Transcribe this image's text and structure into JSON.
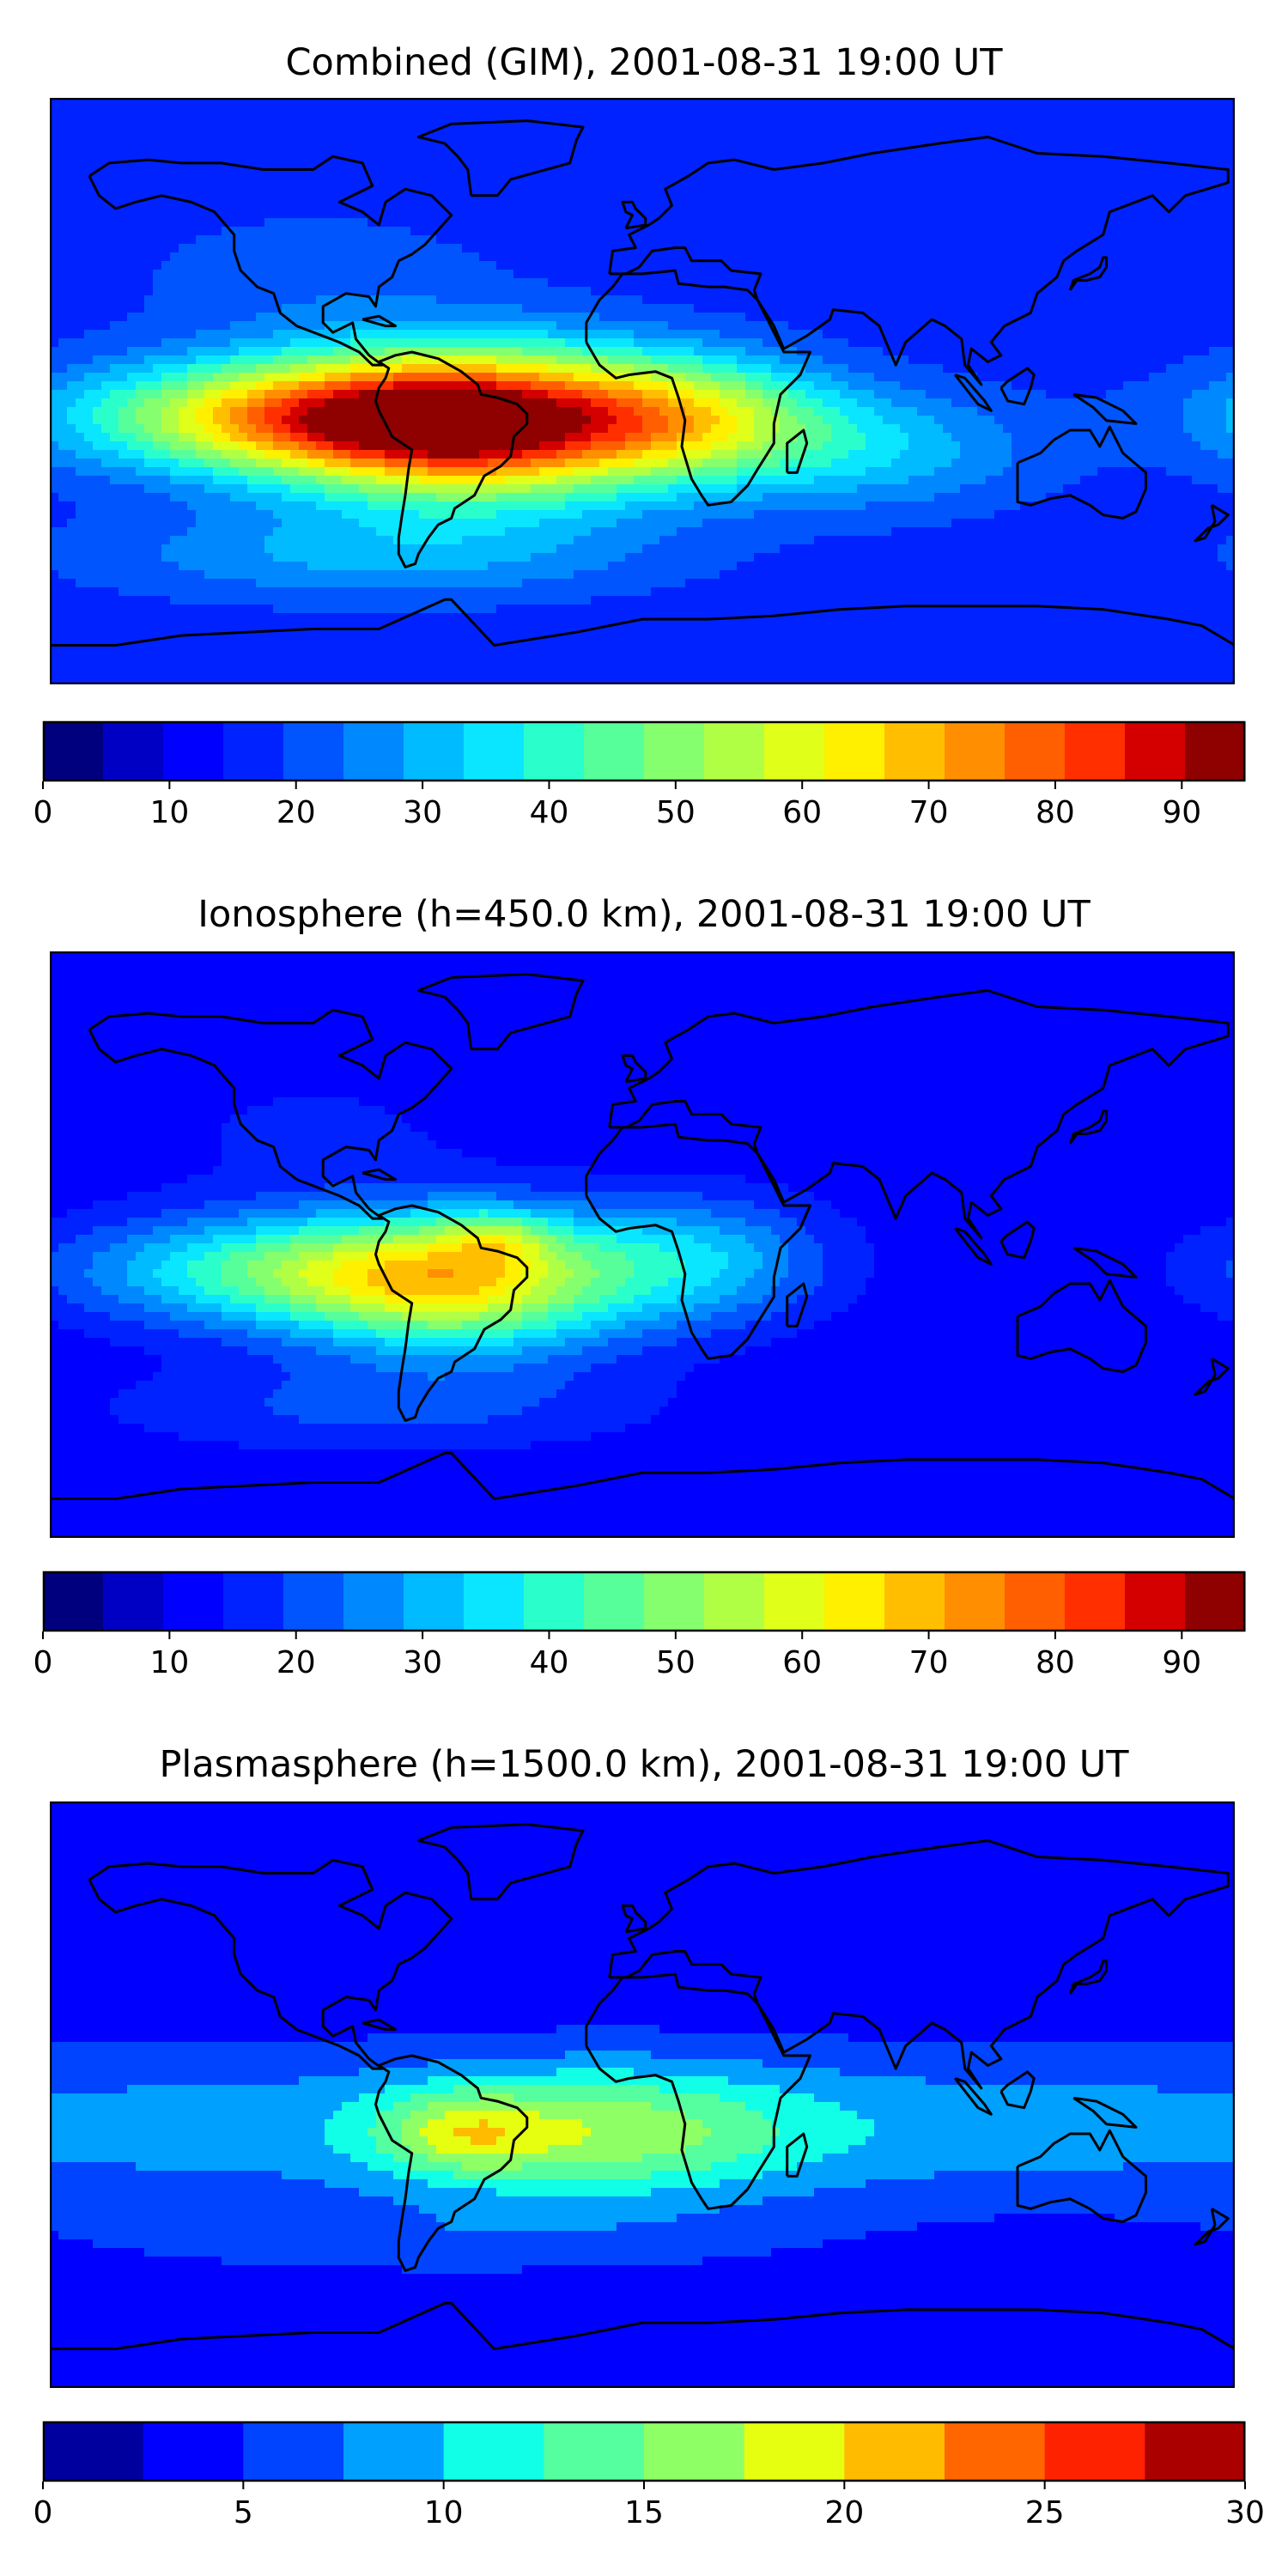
{
  "figure": {
    "panels": [
      {
        "id": "combined",
        "title": "Combined (GIM), 2001-08-31 19:00 UT",
        "colorbar": {
          "min": 0,
          "max": 95,
          "step": 5,
          "ticks": [
            0,
            10,
            20,
            30,
            40,
            50,
            60,
            70,
            80,
            90
          ],
          "tick_labels": [
            "0",
            "10",
            "20",
            "30",
            "40",
            "50",
            "60",
            "70",
            "80",
            "90"
          ],
          "colors": [
            "#00007f",
            "#0000c4",
            "#0000ff",
            "#0022ff",
            "#0055ff",
            "#0088ff",
            "#00bbff",
            "#0ae6ff",
            "#2affcc",
            "#57ff9b",
            "#86ff6e",
            "#b1ff45",
            "#e0ff19",
            "#fff000",
            "#ffbf00",
            "#ff8f00",
            "#ff5f00",
            "#ff2f00",
            "#d40000",
            "#8f0000"
          ]
        },
        "field": {
          "type": "filled_contour",
          "base_level": 17,
          "features": [
            {
              "label": "south-america-peak",
              "lon": -50,
              "lat": -10,
              "amp": 75,
              "sigma_lon": 40,
              "sigma_lat": 16
            },
            {
              "label": "pacific-tongue",
              "lon": -110,
              "lat": -8,
              "amp": 48,
              "sigma_lon": 45,
              "sigma_lat": 12
            },
            {
              "label": "atlantic-africa",
              "lon": 15,
              "lat": -8,
              "amp": 34,
              "sigma_lon": 30,
              "sigma_lat": 13
            },
            {
              "label": "indian-band",
              "lon": 70,
              "lat": -18,
              "amp": 16,
              "sigma_lon": 35,
              "sigma_lat": 13
            },
            {
              "label": "southern-band",
              "lon": -80,
              "lat": -50,
              "amp": 14,
              "sigma_lon": 60,
              "sigma_lat": 10
            },
            {
              "label": "north-america",
              "lon": -100,
              "lat": 35,
              "amp": 6,
              "sigma_lon": 40,
              "sigma_lat": 15
            }
          ]
        }
      },
      {
        "id": "ionosphere",
        "title": "Ionosphere  (h=450.0 km), 2001-08-31 19:00 UT",
        "colorbar": {
          "min": 0,
          "max": 95,
          "step": 5,
          "ticks": [
            0,
            10,
            20,
            30,
            40,
            50,
            60,
            70,
            80,
            90
          ],
          "tick_labels": [
            "0",
            "10",
            "20",
            "30",
            "40",
            "50",
            "60",
            "70",
            "80",
            "90"
          ],
          "colors": [
            "#00007f",
            "#0000c4",
            "#0000ff",
            "#0022ff",
            "#0055ff",
            "#0088ff",
            "#00bbff",
            "#0ae6ff",
            "#2affcc",
            "#57ff9b",
            "#86ff6e",
            "#b1ff45",
            "#e0ff19",
            "#fff000",
            "#ffbf00",
            "#ff8f00",
            "#ff5f00",
            "#ff2f00",
            "#d40000",
            "#8f0000"
          ]
        },
        "field": {
          "type": "filled_contour",
          "base_level": 11,
          "features": [
            {
              "label": "south-america-peak",
              "lon": -55,
              "lat": -12,
              "amp": 46,
              "sigma_lon": 35,
              "sigma_lat": 15
            },
            {
              "label": "amazon-secondary",
              "lon": -45,
              "lat": 2,
              "amp": 16,
              "sigma_lon": 12,
              "sigma_lat": 6
            },
            {
              "label": "pacific-tongue",
              "lon": -110,
              "lat": -8,
              "amp": 32,
              "sigma_lon": 45,
              "sigma_lat": 12
            },
            {
              "label": "atlantic-africa",
              "lon": 15,
              "lat": -5,
              "amp": 22,
              "sigma_lon": 30,
              "sigma_lat": 14
            },
            {
              "label": "southern-band",
              "lon": -80,
              "lat": -50,
              "amp": 10,
              "sigma_lon": 60,
              "sigma_lat": 10
            },
            {
              "label": "north-america",
              "lon": -100,
              "lat": 35,
              "amp": 5,
              "sigma_lon": 40,
              "sigma_lat": 15
            }
          ]
        }
      },
      {
        "id": "plasmasphere",
        "title": "Plasmasphere (h=1500.0 km), 2001-08-31 19:00 UT",
        "colorbar": {
          "min": 0,
          "max": 30,
          "step": 2.5,
          "ticks": [
            0,
            5,
            10,
            15,
            20,
            25,
            30
          ],
          "tick_labels": [
            "0",
            "5",
            "10",
            "15",
            "20",
            "25",
            "30"
          ],
          "colors": [
            "#00009f",
            "#0000ff",
            "#0044ff",
            "#00a0ff",
            "#11ffe6",
            "#55ff9f",
            "#8fff66",
            "#e6ff11",
            "#ffbb00",
            "#ff6600",
            "#ff2200",
            "#aa0000"
          ]
        },
        "field": {
          "type": "filled_contour",
          "base_level": 3,
          "features": [
            {
              "label": "tropical-band",
              "lon": 0,
              "lat": -10,
              "amp": 6,
              "sigma_lon": 400,
              "sigma_lat": 18
            },
            {
              "label": "atlantic-africa",
              "lon": -10,
              "lat": -12,
              "amp": 8,
              "sigma_lon": 40,
              "sigma_lat": 14
            },
            {
              "label": "south-america-peak",
              "lon": -55,
              "lat": -12,
              "amp": 7,
              "sigma_lon": 18,
              "sigma_lat": 9
            },
            {
              "label": "southern-band",
              "lon": -60,
              "lat": -45,
              "amp": 3,
              "sigma_lon": 80,
              "sigma_lat": 8
            }
          ]
        }
      }
    ]
  }
}
